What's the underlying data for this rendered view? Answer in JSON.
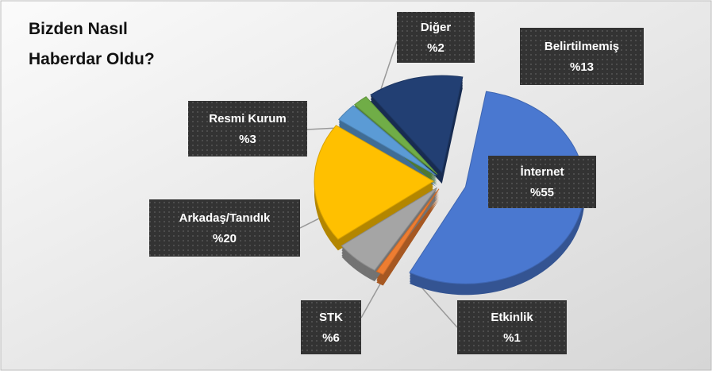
{
  "chart_data": {
    "type": "pie3d",
    "title": "Bizden Nasıl Haberdar Oldu?",
    "categories": [
      "İnternet",
      "Etkinlik",
      "STK",
      "Arkadaş/Tanıdık",
      "Resmi Kurum",
      "Diğer",
      "Belirtilmemiş"
    ],
    "values": [
      55,
      1,
      6,
      20,
      3,
      2,
      13
    ],
    "value_labels": [
      "%55",
      "%1",
      "%6",
      "%20",
      "%3",
      "%2",
      "%13"
    ],
    "colors": [
      "#4a78d0",
      "#ed7d31",
      "#a5a5a5",
      "#ffc000",
      "#5b9bd5",
      "#70ad47",
      "#223f73"
    ]
  }
}
